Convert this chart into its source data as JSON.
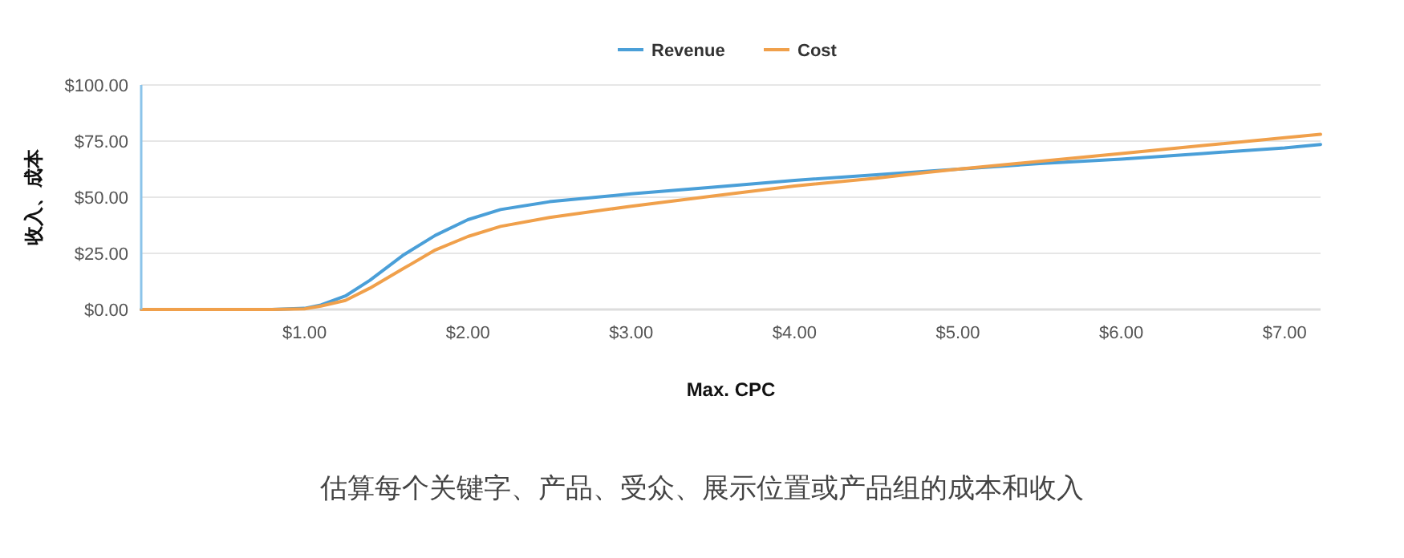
{
  "chart_data": {
    "type": "line",
    "xlabel": "Max. CPC",
    "ylabel": "收入、成本",
    "x": [
      0,
      0.5,
      0.8,
      1.0,
      1.1,
      1.25,
      1.4,
      1.6,
      1.8,
      2.0,
      2.2,
      2.5,
      3.0,
      3.5,
      4.0,
      4.5,
      4.8,
      5.0,
      5.5,
      6.0,
      6.5,
      7.0,
      7.22
    ],
    "series": [
      {
        "name": "Revenue",
        "color": "#4a9fd8",
        "values": [
          0,
          0,
          0,
          0.5,
          2,
          6,
          13,
          24,
          33,
          40,
          44.5,
          48,
          51.5,
          54.5,
          57.5,
          60,
          61.5,
          62.5,
          65,
          67,
          69.5,
          72,
          73.5
        ]
      },
      {
        "name": "Cost",
        "color": "#f0a04b",
        "values": [
          0,
          0,
          0,
          0.3,
          1.5,
          4,
          9.5,
          18,
          26.5,
          32.5,
          37,
          41,
          46,
          50.5,
          55,
          58.5,
          61,
          62.5,
          66,
          69.5,
          73,
          76.5,
          78
        ]
      }
    ],
    "xlim": [
      0,
      7.22
    ],
    "ylim": [
      0,
      100
    ],
    "xticks": [
      {
        "value": 1,
        "label": "$1.00"
      },
      {
        "value": 2,
        "label": "$2.00"
      },
      {
        "value": 3,
        "label": "$3.00"
      },
      {
        "value": 4,
        "label": "$4.00"
      },
      {
        "value": 5,
        "label": "$5.00"
      },
      {
        "value": 6,
        "label": "$6.00"
      },
      {
        "value": 7,
        "label": "$7.00"
      }
    ],
    "yticks": [
      {
        "value": 0,
        "label": "$0.00"
      },
      {
        "value": 25,
        "label": "$25.00"
      },
      {
        "value": 50,
        "label": "$50.00"
      },
      {
        "value": 75,
        "label": "$75.00"
      },
      {
        "value": 100,
        "label": "$100.00"
      }
    ],
    "grid": "y",
    "legend": "top",
    "marker": "none",
    "line_style": "solid",
    "annotations": [
      "估算每个关键字、产品、受众、展示位置或产品组的成本和收入"
    ]
  }
}
